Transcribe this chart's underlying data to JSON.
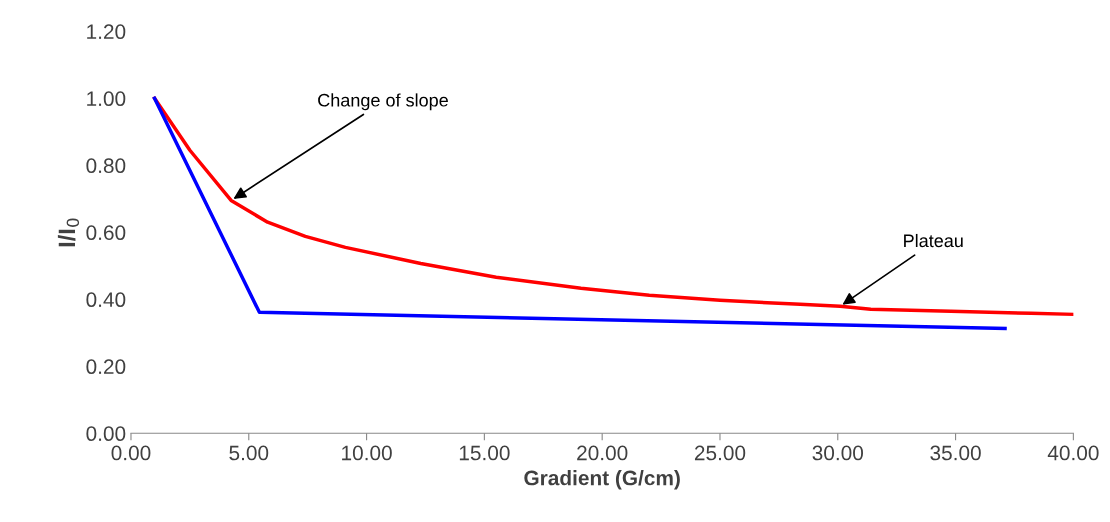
{
  "chart_data": {
    "type": "line",
    "xlabel": "Gradient (G/cm)",
    "ylabel": "I/I$_{0}$",
    "xlim": [
      0,
      40
    ],
    "xticks": [
      {
        "value": 0,
        "label": "0.00"
      },
      {
        "value": 5,
        "label": "5.00"
      },
      {
        "value": 10,
        "label": "10.00"
      },
      {
        "value": 15,
        "label": "15.00"
      },
      {
        "value": 20,
        "label": "20.00"
      },
      {
        "value": 25,
        "label": "25.00"
      },
      {
        "value": 30,
        "label": "30.00"
      },
      {
        "value": 35,
        "label": "35.00"
      },
      {
        "value": 40,
        "label": "40.00"
      }
    ],
    "ylim": [
      0,
      1.2
    ],
    "yticks": [
      {
        "value": 0,
        "label": "0.00"
      },
      {
        "value": 0.2,
        "label": "0.20"
      },
      {
        "value": 0.4,
        "label": "0.40"
      },
      {
        "value": 0.6,
        "label": "0.60"
      },
      {
        "value": 0.8,
        "label": "0.80"
      },
      {
        "value": 1.0,
        "label": "1.00"
      },
      {
        "value": 1.2,
        "label": "1.20"
      }
    ],
    "grid": false,
    "legend": false,
    "marker": "none",
    "line_style": "solid",
    "series": [
      {
        "color": "#ff0000",
        "x": [
          1.0,
          2.5,
          4.25,
          5.8,
          7.4,
          9.1,
          12.3,
          15.5,
          19.1,
          22,
          25,
          28.4,
          30.1,
          31.4,
          34.8,
          38.2,
          40
        ],
        "values": [
          1.0,
          0.845,
          0.695,
          0.63,
          0.588,
          0.555,
          0.507,
          0.466,
          0.433,
          0.412,
          0.397,
          0.385,
          0.379,
          0.37,
          0.364,
          0.358,
          0.355
        ]
      },
      {
        "color": "#0000ff",
        "x": [
          1.0,
          5.45,
          37.1
        ],
        "values": [
          1.0,
          0.361,
          0.313
        ]
      }
    ],
    "annotations": [
      {
        "text": "Change of slope",
        "x": 4.25,
        "y": 0.695
      },
      {
        "text": "Plateau",
        "x": 30.1,
        "y": 0.379
      }
    ]
  }
}
